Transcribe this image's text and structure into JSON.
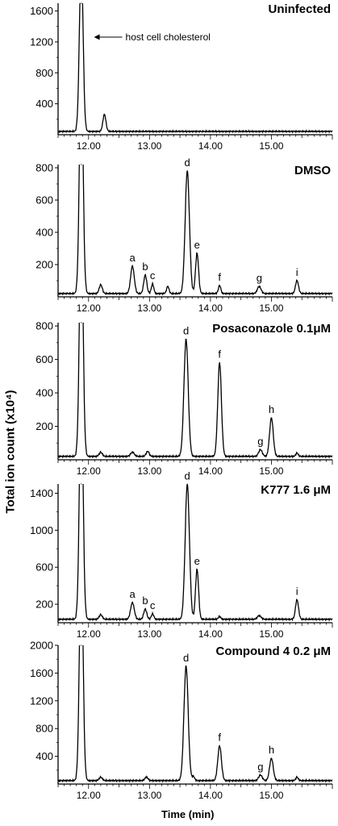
{
  "y_axis_label": "Total ion count (x10⁴)",
  "x_axis_label": "Time (min)",
  "colors": {
    "line": "#000000",
    "background": "#ffffff"
  },
  "chart_data": [
    {
      "type": "line",
      "title": "Uninfected",
      "xlim": [
        11.5,
        16.0
      ],
      "ylim": [
        0,
        1700
      ],
      "yticks": [
        "400",
        "800",
        "1200",
        "1600"
      ],
      "xticks": [
        "12.00",
        "13.00",
        "14.00",
        "15.00"
      ],
      "annotations": [
        {
          "text": "host cell cholesterol",
          "x": 12.05,
          "y": 1550,
          "arrow": true
        }
      ],
      "peaks": [
        {
          "label": "",
          "x": 11.88,
          "height": 2200,
          "width": 0.03
        },
        {
          "label": "",
          "x": 12.26,
          "height": 220,
          "width": 0.025
        }
      ],
      "series": [
        {
          "x": [
            11.5,
            11.88,
            12.26,
            12.5,
            13.0,
            14.0,
            15.0,
            16.0
          ],
          "y": [
            20,
            2200,
            220,
            30,
            25,
            25,
            25,
            20
          ]
        }
      ]
    },
    {
      "type": "line",
      "title": "DMSO",
      "xlim": [
        11.5,
        16.0
      ],
      "ylim": [
        0,
        820
      ],
      "yticks": [
        "200",
        "400",
        "600",
        "800"
      ],
      "xticks": [
        "12.00",
        "13.00",
        "14.00",
        "15.00"
      ],
      "peaks": [
        {
          "label": "",
          "x": 11.88,
          "height": 1400,
          "width": 0.03
        },
        {
          "label": "",
          "x": 12.2,
          "height": 55,
          "width": 0.025
        },
        {
          "label": "a",
          "x": 12.72,
          "height": 170,
          "width": 0.03
        },
        {
          "label": "b",
          "x": 12.93,
          "height": 115,
          "width": 0.025
        },
        {
          "label": "c",
          "x": 13.05,
          "height": 60,
          "width": 0.02
        },
        {
          "label": "",
          "x": 13.3,
          "height": 45,
          "width": 0.02
        },
        {
          "label": "d",
          "x": 13.62,
          "height": 760,
          "width": 0.035
        },
        {
          "label": "e",
          "x": 13.78,
          "height": 250,
          "width": 0.025
        },
        {
          "label": "f",
          "x": 14.15,
          "height": 50,
          "width": 0.02
        },
        {
          "label": "g",
          "x": 14.8,
          "height": 45,
          "width": 0.03
        },
        {
          "label": "i",
          "x": 15.42,
          "height": 80,
          "width": 0.025
        }
      ],
      "series": [
        {
          "x": [
            11.88,
            12.72,
            12.93,
            13.05,
            13.62,
            13.78,
            14.15,
            14.8,
            15.42
          ],
          "y": [
            1400,
            170,
            115,
            60,
            760,
            250,
            50,
            45,
            80
          ]
        }
      ]
    },
    {
      "type": "line",
      "title": "Posaconazole 0.1μM",
      "xlim": [
        11.5,
        16.0
      ],
      "ylim": [
        0,
        820
      ],
      "yticks": [
        "200",
        "400",
        "600",
        "800"
      ],
      "xticks": [
        "12.00",
        "13.00",
        "14.00",
        "15.00"
      ],
      "peaks": [
        {
          "label": "",
          "x": 11.88,
          "height": 1400,
          "width": 0.03
        },
        {
          "label": "",
          "x": 12.2,
          "height": 25,
          "width": 0.025
        },
        {
          "label": "",
          "x": 12.72,
          "height": 25,
          "width": 0.03
        },
        {
          "label": "",
          "x": 12.97,
          "height": 30,
          "width": 0.025
        },
        {
          "label": "d",
          "x": 13.6,
          "height": 700,
          "width": 0.035
        },
        {
          "label": "f",
          "x": 14.15,
          "height": 560,
          "width": 0.03
        },
        {
          "label": "g",
          "x": 14.82,
          "height": 40,
          "width": 0.03
        },
        {
          "label": "h",
          "x": 15.0,
          "height": 230,
          "width": 0.03
        },
        {
          "label": "",
          "x": 15.42,
          "height": 20,
          "width": 0.02
        }
      ],
      "series": [
        {
          "x": [
            11.88,
            13.6,
            14.15,
            14.82,
            15.0
          ],
          "y": [
            1400,
            700,
            560,
            40,
            230
          ]
        }
      ]
    },
    {
      "type": "line",
      "title": "K777 1.6 μM",
      "xlim": [
        11.5,
        16.0
      ],
      "ylim": [
        0,
        1500
      ],
      "yticks": [
        "200",
        "600",
        "1000",
        "1400"
      ],
      "xticks": [
        "12.00",
        "13.00",
        "14.00",
        "15.00"
      ],
      "peaks": [
        {
          "label": "",
          "x": 11.88,
          "height": 2500,
          "width": 0.03
        },
        {
          "label": "",
          "x": 12.2,
          "height": 50,
          "width": 0.025
        },
        {
          "label": "a",
          "x": 12.72,
          "height": 180,
          "width": 0.03
        },
        {
          "label": "b",
          "x": 12.93,
          "height": 110,
          "width": 0.025
        },
        {
          "label": "c",
          "x": 13.05,
          "height": 60,
          "width": 0.02
        },
        {
          "label": "d",
          "x": 13.62,
          "height": 1460,
          "width": 0.035
        },
        {
          "label": "e",
          "x": 13.78,
          "height": 540,
          "width": 0.025
        },
        {
          "label": "",
          "x": 14.15,
          "height": 30,
          "width": 0.02
        },
        {
          "label": "",
          "x": 14.8,
          "height": 40,
          "width": 0.03
        },
        {
          "label": "i",
          "x": 15.42,
          "height": 210,
          "width": 0.025
        }
      ],
      "series": [
        {
          "x": [
            11.88,
            12.72,
            12.93,
            13.05,
            13.62,
            13.78,
            15.42
          ],
          "y": [
            2500,
            180,
            110,
            60,
            1460,
            540,
            210
          ]
        }
      ]
    },
    {
      "type": "line",
      "title": "Compound 4 0.2 μM",
      "xlim": [
        11.5,
        16.0
      ],
      "ylim": [
        0,
        2000
      ],
      "yticks": [
        "400",
        "800",
        "1200",
        "1600",
        "2000"
      ],
      "xticks": [
        "12.00",
        "13.00",
        "14.00",
        "15.00"
      ],
      "peaks": [
        {
          "label": "",
          "x": 11.88,
          "height": 3200,
          "width": 0.03
        },
        {
          "label": "",
          "x": 12.2,
          "height": 50,
          "width": 0.025
        },
        {
          "label": "",
          "x": 12.95,
          "height": 50,
          "width": 0.025
        },
        {
          "label": "d",
          "x": 13.6,
          "height": 1650,
          "width": 0.035
        },
        {
          "label": "",
          "x": 13.72,
          "height": 60,
          "width": 0.02
        },
        {
          "label": "f",
          "x": 14.15,
          "height": 500,
          "width": 0.03
        },
        {
          "label": "g",
          "x": 14.82,
          "height": 80,
          "width": 0.03
        },
        {
          "label": "h",
          "x": 15.0,
          "height": 320,
          "width": 0.03
        },
        {
          "label": "",
          "x": 15.42,
          "height": 50,
          "width": 0.02
        }
      ],
      "series": [
        {
          "x": [
            11.88,
            13.6,
            14.15,
            14.82,
            15.0
          ],
          "y": [
            3200,
            1650,
            500,
            80,
            320
          ]
        }
      ]
    }
  ]
}
